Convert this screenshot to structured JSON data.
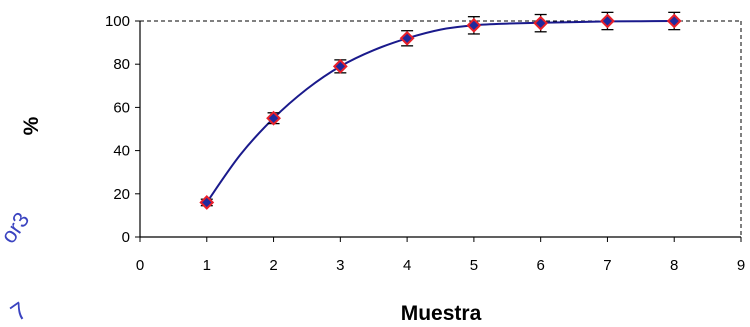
{
  "chart_data": {
    "type": "scatter",
    "xlabel": "Muestra",
    "ylabel": "%",
    "xlim": [
      0,
      9
    ],
    "ylim": [
      0,
      100
    ],
    "x_ticks": [
      "0",
      "1",
      "2",
      "3",
      "4",
      "5",
      "6",
      "7",
      "8",
      "9"
    ],
    "y_ticks": [
      "0",
      "20",
      "40",
      "60",
      "80",
      "100"
    ],
    "grid": "dashed border at top and right",
    "series": [
      {
        "marker": "diamond",
        "marker_fill": "#1f2a9e",
        "marker_edge": "#e8202a",
        "line_color": "#1a1a8c",
        "x": [
          1,
          2,
          3,
          4,
          5,
          6,
          7,
          8
        ],
        "y": [
          16,
          55,
          79,
          92,
          98,
          99,
          100,
          100
        ],
        "error": [
          1.5,
          2.5,
          3,
          3.5,
          4,
          4,
          4,
          4
        ]
      }
    ],
    "fit_curve": {
      "x": [
        1,
        1.5,
        2,
        2.5,
        3,
        3.5,
        4,
        4.5,
        5,
        5.5,
        6,
        6.5,
        7,
        7.5,
        8
      ],
      "y": [
        16,
        38,
        55,
        68.5,
        79,
        86.5,
        92,
        96,
        98,
        98.8,
        99.2,
        99.5,
        99.8,
        99.9,
        100
      ]
    }
  },
  "stamps": {
    "upper": "or3",
    "lower": "7"
  },
  "colors": {
    "axis": "#000000",
    "curve": "#1a1a8c",
    "marker_fill": "#1f2a9e",
    "marker_edge": "#e8202a",
    "error_bar": "#000000",
    "stamp": "#3a43c0"
  }
}
